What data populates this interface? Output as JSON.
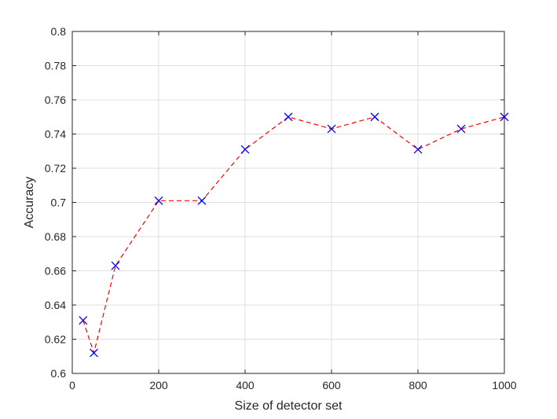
{
  "chart_data": {
    "type": "line",
    "title": "",
    "xlabel": "Size of detector set",
    "ylabel": "Accuracy",
    "xlim": [
      0,
      1000
    ],
    "ylim": [
      0.6,
      0.8
    ],
    "xticks": [
      0,
      200,
      400,
      600,
      800,
      1000
    ],
    "xtick_labels": [
      "0",
      "200",
      "400",
      "600",
      "800",
      "1000"
    ],
    "yticks": [
      0.6,
      0.62,
      0.64,
      0.66,
      0.68,
      0.7,
      0.72,
      0.74,
      0.76,
      0.78,
      0.8
    ],
    "ytick_labels": [
      "0.6",
      "0.62",
      "0.64",
      "0.66",
      "0.68",
      "0.7",
      "0.72",
      "0.74",
      "0.76",
      "0.78",
      "0.8"
    ],
    "grid": true,
    "series": [
      {
        "x": [
          25,
          50,
          100,
          200,
          300,
          400,
          500,
          600,
          700,
          800,
          900,
          1000
        ],
        "y": [
          0.631,
          0.612,
          0.663,
          0.701,
          0.701,
          0.731,
          0.75,
          0.743,
          0.75,
          0.731,
          0.743,
          0.75
        ],
        "line_color": "#ff0000",
        "line_style": "dashed",
        "marker": "x",
        "marker_color": "#0000ff"
      }
    ]
  }
}
